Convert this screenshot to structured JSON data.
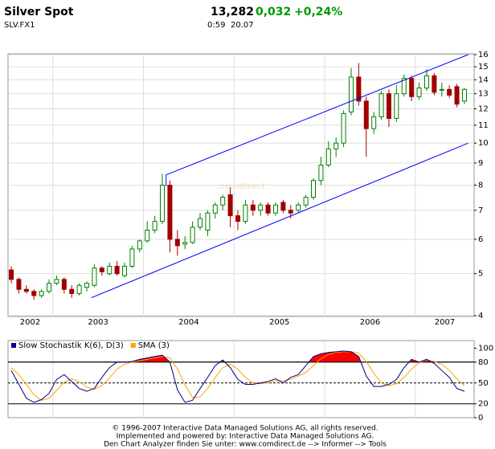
{
  "header": {
    "title": "Silver Spot",
    "last": "13,282",
    "change": "0,032",
    "change_pct": "+0,24%",
    "symbol": "SLV.FX1",
    "time": "0:59",
    "date": "20.07"
  },
  "chart_data": [
    {
      "type": "candlestick",
      "watermark": ".comdirect",
      "log_scale": true,
      "grid": true,
      "up_color": "#008000",
      "down_color": "#a00000",
      "xlim": [
        -0.43,
        61.28
      ],
      "ylim": [
        4,
        16
      ],
      "yticks": [
        4,
        5,
        6,
        7,
        8,
        9,
        10,
        11,
        12,
        13,
        14,
        15,
        16
      ],
      "xticks": [
        {
          "value": 2.5,
          "label": "2002"
        },
        {
          "value": 11.5,
          "label": "2003"
        },
        {
          "value": 23.5,
          "label": "2004"
        },
        {
          "value": 35.5,
          "label": "2005"
        },
        {
          "value": 47.5,
          "label": "2006"
        },
        {
          "value": 57.4,
          "label": "2007"
        }
      ],
      "xgrid": [
        5.5,
        17.5,
        29.5,
        41.5,
        53.5
      ],
      "open": [
        5.1,
        4.85,
        4.6,
        4.55,
        4.45,
        4.55,
        4.75,
        4.85,
        4.6,
        4.5,
        4.65,
        4.7,
        5.15,
        5.0,
        5.2,
        4.95,
        5.2,
        5.7,
        5.95,
        6.3,
        6.6,
        8.0,
        6.0,
        5.85,
        5.9,
        6.4,
        6.3,
        6.9,
        7.2,
        7.6,
        6.8,
        6.6,
        7.2,
        7.0,
        7.2,
        6.9,
        7.3,
        7.0,
        7.0,
        7.2,
        7.5,
        8.2,
        8.9,
        9.7,
        10.0,
        11.8,
        14.2,
        12.5,
        10.8,
        11.5,
        13.0,
        11.4,
        13.0,
        14.1,
        12.8,
        13.4,
        14.3,
        13.3,
        13.3,
        13.5,
        12.5
      ],
      "high": [
        5.2,
        4.9,
        4.7,
        4.6,
        4.6,
        4.85,
        4.95,
        4.9,
        4.7,
        4.75,
        4.8,
        5.25,
        5.2,
        5.3,
        5.35,
        5.3,
        5.8,
        6.0,
        6.6,
        6.8,
        8.5,
        8.2,
        6.3,
        6.1,
        6.6,
        6.9,
        7.0,
        7.3,
        7.6,
        7.9,
        7.0,
        7.4,
        7.4,
        7.3,
        7.3,
        7.3,
        7.4,
        7.2,
        7.3,
        7.6,
        8.3,
        9.3,
        10.1,
        10.3,
        11.9,
        14.9,
        15.3,
        12.8,
        11.8,
        13.2,
        13.3,
        13.6,
        14.4,
        14.3,
        13.8,
        14.8,
        14.5,
        13.8,
        13.6,
        13.7,
        13.4
      ],
      "low": [
        4.75,
        4.5,
        4.5,
        4.35,
        4.4,
        4.5,
        4.7,
        4.5,
        4.4,
        4.45,
        4.55,
        4.65,
        4.95,
        4.95,
        4.95,
        4.9,
        5.15,
        5.6,
        5.9,
        6.2,
        6.5,
        5.6,
        5.5,
        5.7,
        5.85,
        6.3,
        6.1,
        6.7,
        7.0,
        6.4,
        6.3,
        6.5,
        6.8,
        6.8,
        6.8,
        6.8,
        6.9,
        6.7,
        6.9,
        7.1,
        7.4,
        8.0,
        8.8,
        9.3,
        9.8,
        11.6,
        12.2,
        9.3,
        10.5,
        11.3,
        10.9,
        11.2,
        12.8,
        12.5,
        12.6,
        13.2,
        12.9,
        12.8,
        12.7,
        12.1,
        12.3
      ],
      "close": [
        4.85,
        4.6,
        4.55,
        4.45,
        4.55,
        4.75,
        4.85,
        4.6,
        4.5,
        4.7,
        4.75,
        5.15,
        5.05,
        5.2,
        5.0,
        5.2,
        5.7,
        5.95,
        6.3,
        6.6,
        8.0,
        6.0,
        5.8,
        5.9,
        6.4,
        6.7,
        6.9,
        7.2,
        7.5,
        6.8,
        6.6,
        7.2,
        7.0,
        7.2,
        6.9,
        7.2,
        7.0,
        6.9,
        7.2,
        7.5,
        8.2,
        8.9,
        9.7,
        10.0,
        11.7,
        14.2,
        12.5,
        10.8,
        11.5,
        13.0,
        11.4,
        13.0,
        14.1,
        12.8,
        13.4,
        14.3,
        13.1,
        13.3,
        12.9,
        12.3,
        13.3
      ],
      "trend_lines": [
        {
          "color": "#0000ff",
          "x": [
            10.6,
            60.5
          ],
          "y": [
            4.4,
            10.0
          ]
        },
        {
          "color": "#0000ff",
          "x": [
            20.5,
            20.5,
            60.5
          ],
          "y": [
            7.95,
            8.45,
            16.0
          ]
        }
      ]
    },
    {
      "type": "line",
      "xlim": [
        -0.43,
        61.28
      ],
      "ylim": [
        0,
        111
      ],
      "yticks": [
        0,
        20,
        50,
        80,
        100
      ],
      "xgrid": [
        5.5,
        17.5,
        29.5,
        41.5,
        53.5
      ],
      "levels": [
        {
          "value": 20,
          "dashed": false
        },
        {
          "value": 50,
          "dashed": true
        },
        {
          "value": 80,
          "dashed": false
        }
      ],
      "overbought": 80,
      "overbought_color": "#ff0000",
      "series": [
        {
          "name": "Slow Stochastik K(6), D(3)",
          "color": "#000080",
          "values": [
            68,
            48,
            28,
            22,
            26,
            35,
            55,
            62,
            52,
            42,
            38,
            42,
            58,
            72,
            80,
            80,
            81,
            84,
            86,
            88,
            90,
            80,
            40,
            22,
            25,
            42,
            58,
            75,
            83,
            72,
            55,
            48,
            48,
            50,
            52,
            56,
            50,
            58,
            62,
            75,
            88,
            92,
            94,
            95,
            96,
            95,
            88,
            60,
            45,
            45,
            48,
            55,
            72,
            84,
            80,
            84,
            78,
            68,
            58,
            42,
            38
          ]
        },
        {
          "name": "SMA (3)",
          "color": "#ffa500",
          "values": [
            72,
            62,
            48,
            33,
            25,
            28,
            39,
            51,
            56,
            52,
            44,
            41,
            46,
            57,
            70,
            77,
            80,
            82,
            84,
            86,
            88,
            86,
            70,
            47,
            29,
            30,
            42,
            58,
            72,
            77,
            70,
            58,
            50,
            49,
            50,
            53,
            53,
            55,
            60,
            65,
            75,
            85,
            91,
            94,
            95,
            95,
            93,
            81,
            64,
            50,
            46,
            49,
            58,
            70,
            79,
            83,
            81,
            77,
            68,
            56,
            46
          ]
        }
      ]
    }
  ],
  "footer": [
    "© 1996-2007 Interactive Data Managed Solutions AG, all rights reserved.",
    "Implemented and powered by: Interactive Data Managed Solutions AG.",
    "Den Chart Analyzer finden Sie unter: www.comdirect.de --> Informer --> Tools"
  ]
}
